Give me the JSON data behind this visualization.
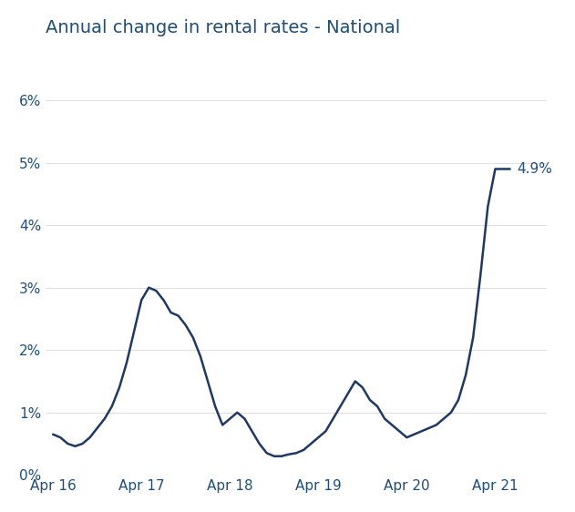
{
  "title": "Annual change in rental rates - National",
  "title_color": "#1f4e79",
  "line_color": "#1f3864",
  "background_color": "#ffffff",
  "annotation_text": "4.9%",
  "annotation_color": "#1f4e79",
  "ylim": [
    0.0,
    0.068
  ],
  "ytick_values": [
    0.0,
    0.01,
    0.02,
    0.03,
    0.04,
    0.05,
    0.06
  ],
  "ytick_labels": [
    "0%",
    "1%",
    "2%",
    "3%",
    "4%",
    "5%",
    "6%"
  ],
  "xtick_labels": [
    "Apr 16",
    "Apr 17",
    "Apr 18",
    "Apr 19",
    "Apr 20",
    "Apr 21"
  ],
  "xtick_positions": [
    0,
    12,
    24,
    36,
    48,
    60
  ],
  "xlim": [
    -1,
    67
  ],
  "x": [
    0,
    1,
    2,
    3,
    4,
    5,
    6,
    7,
    8,
    9,
    10,
    11,
    12,
    13,
    14,
    15,
    16,
    17,
    18,
    19,
    20,
    21,
    22,
    23,
    24,
    25,
    26,
    27,
    28,
    29,
    30,
    31,
    32,
    33,
    34,
    35,
    36,
    37,
    38,
    39,
    40,
    41,
    42,
    43,
    44,
    45,
    46,
    47,
    48,
    49,
    50,
    51,
    52,
    53,
    54,
    55,
    56,
    57,
    58,
    59,
    60,
    61,
    62
  ],
  "y": [
    0.0065,
    0.006,
    0.005,
    0.0046,
    0.005,
    0.006,
    0.0075,
    0.009,
    0.011,
    0.014,
    0.018,
    0.023,
    0.028,
    0.03,
    0.0295,
    0.028,
    0.026,
    0.0255,
    0.024,
    0.022,
    0.019,
    0.015,
    0.011,
    0.008,
    0.009,
    0.01,
    0.009,
    0.007,
    0.005,
    0.0035,
    0.003,
    0.003,
    0.0033,
    0.0035,
    0.004,
    0.005,
    0.006,
    0.007,
    0.009,
    0.011,
    0.013,
    0.015,
    0.014,
    0.012,
    0.011,
    0.009,
    0.008,
    0.007,
    0.006,
    0.0065,
    0.007,
    0.0075,
    0.008,
    0.009,
    0.01,
    0.012,
    0.016,
    0.022,
    0.032,
    0.043,
    0.049,
    0.049,
    0.049
  ]
}
